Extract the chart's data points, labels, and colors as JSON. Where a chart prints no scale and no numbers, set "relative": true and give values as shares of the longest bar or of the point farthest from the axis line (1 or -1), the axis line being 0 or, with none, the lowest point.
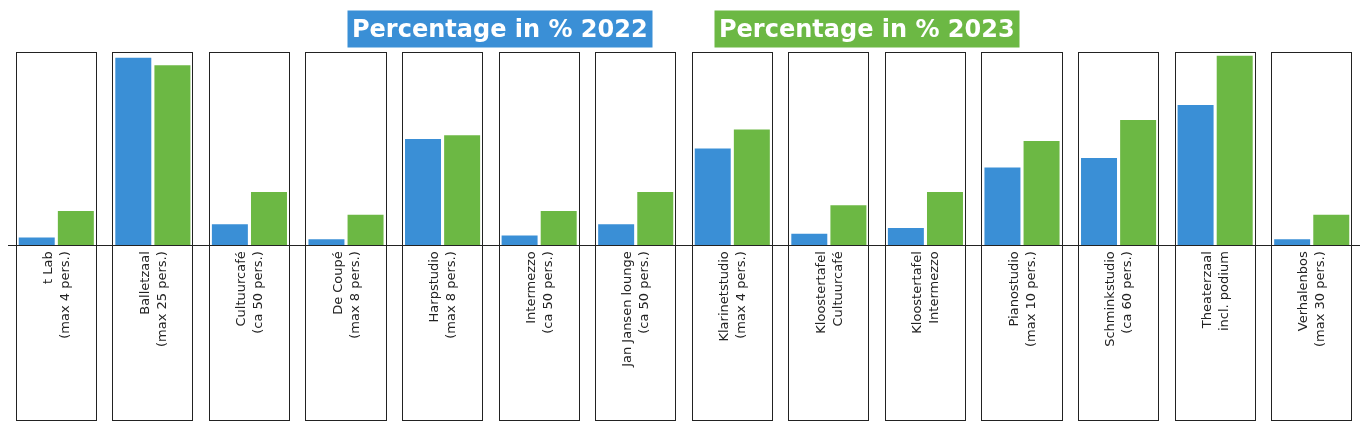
{
  "chart_data": {
    "type": "bar",
    "relative": true,
    "legend": "top",
    "categories": [
      "t Lab\n(max 4 pers.)",
      "Balletzaal\n(max 25 pers.)",
      "Cultuurcafé\n(ca 50 pers.)",
      "De Coupé\n(max 8 pers.)",
      "Harpstudio\n(max 8 pers.)",
      "Intermezzo\n(ca 50 pers.)",
      "Jan Jansen lounge\n(ca 50 pers.)",
      "Klarinetstudio\n(max 4 pers.)",
      "Kloostertafel\nCultuurcafé",
      "Kloostertafel\nIntermezzo",
      "Pianostudio\n(max 10 pers.)",
      "Schminkstudio\n(ca 60 pers.)",
      "Theaterzaal\nincl. podium",
      "Verhalenbos\n(max 30 pers.)"
    ],
    "series": [
      {
        "name": "Percentage in % 2022",
        "color": "#3a8fd6",
        "values": [
          0.04,
          0.99,
          0.11,
          0.03,
          0.56,
          0.05,
          0.11,
          0.51,
          0.06,
          0.09,
          0.41,
          0.46,
          0.74,
          0.03
        ]
      },
      {
        "name": "Percentage in % 2023",
        "color": "#6cb844",
        "values": [
          0.18,
          0.95,
          0.28,
          0.16,
          0.58,
          0.18,
          0.28,
          0.61,
          0.21,
          0.28,
          0.55,
          0.66,
          1,
          0.16
        ]
      }
    ]
  }
}
